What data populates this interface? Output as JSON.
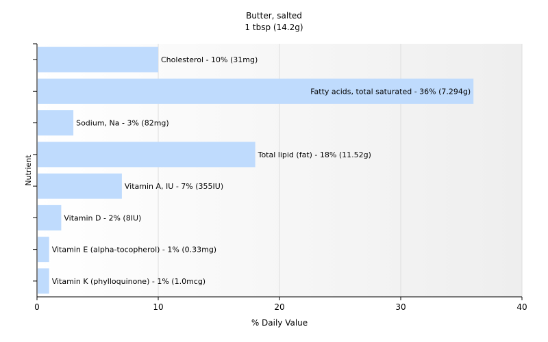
{
  "chart_data": {
    "type": "bar",
    "orientation": "horizontal",
    "title": "Butter, salted",
    "subtitle": "1 tbsp (14.2g)",
    "xlabel": "% Daily Value",
    "ylabel": "Nutrient",
    "xlim": [
      0,
      40
    ],
    "xticks": [
      0,
      10,
      20,
      30,
      40
    ],
    "grid": true,
    "bar_color": "#bfdbfd",
    "categories": [
      "Cholesterol",
      "Fatty acids, total saturated",
      "Sodium, Na",
      "Total lipid (fat)",
      "Vitamin A, IU",
      "Vitamin D",
      "Vitamin E (alpha-tocopherol)",
      "Vitamin K (phylloquinone)"
    ],
    "values": [
      10,
      36,
      3,
      18,
      7,
      2,
      1,
      1
    ],
    "labels": [
      "Cholesterol - 10% (31mg)",
      "Fatty acids, total saturated - 36% (7.294g)",
      "Sodium, Na - 3% (82mg)",
      "Total lipid (fat) - 18% (11.52g)",
      "Vitamin A, IU - 7% (355IU)",
      "Vitamin D - 2% (8IU)",
      "Vitamin E (alpha-tocopherol) - 1% (0.33mg)",
      "Vitamin K (phylloquinone) - 1% (1.0mcg)"
    ]
  }
}
